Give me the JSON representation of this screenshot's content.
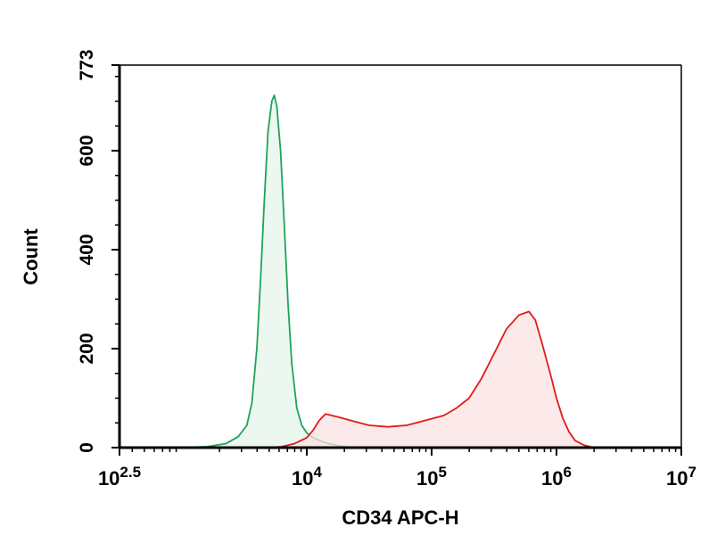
{
  "chart_data": {
    "type": "area",
    "title": "",
    "xlabel": "CD34 APC-H",
    "ylabel": "Count",
    "x_scale": "log10",
    "xlim_log10": [
      2.5,
      7
    ],
    "ylim": [
      0,
      773
    ],
    "x_ticks": [
      {
        "base": "10",
        "exp": "2.5",
        "value_log10": 2.5
      },
      {
        "base": "10",
        "exp": "4",
        "value_log10": 4
      },
      {
        "base": "10",
        "exp": "5",
        "value_log10": 5
      },
      {
        "base": "10",
        "exp": "6",
        "value_log10": 6
      },
      {
        "base": "10",
        "exp": "7",
        "value_log10": 7
      }
    ],
    "y_ticks": [
      {
        "label": "0",
        "value": 0
      },
      {
        "label": "200",
        "value": 200
      },
      {
        "label": "400",
        "value": 400
      },
      {
        "label": "600",
        "value": 600
      },
      {
        "label": "773",
        "value": 773
      }
    ],
    "grid": false,
    "legend": "none",
    "series": [
      {
        "color": "#1fa35a",
        "fill": "#e6f4ea",
        "points_log10_count": [
          [
            3.0,
            0
          ],
          [
            3.2,
            2
          ],
          [
            3.35,
            8
          ],
          [
            3.45,
            22
          ],
          [
            3.52,
            45
          ],
          [
            3.56,
            90
          ],
          [
            3.6,
            200
          ],
          [
            3.63,
            340
          ],
          [
            3.66,
            500
          ],
          [
            3.69,
            640
          ],
          [
            3.72,
            700
          ],
          [
            3.74,
            712
          ],
          [
            3.76,
            690
          ],
          [
            3.79,
            600
          ],
          [
            3.82,
            450
          ],
          [
            3.85,
            290
          ],
          [
            3.88,
            170
          ],
          [
            3.92,
            80
          ],
          [
            3.96,
            45
          ],
          [
            4.0,
            30
          ],
          [
            4.05,
            20
          ],
          [
            4.15,
            10
          ],
          [
            4.25,
            4
          ],
          [
            4.35,
            1
          ],
          [
            4.45,
            0
          ]
        ]
      },
      {
        "color": "#e01b1b",
        "fill": "#fbe2e2",
        "points_log10_count": [
          [
            3.7,
            0
          ],
          [
            3.8,
            2
          ],
          [
            3.9,
            8
          ],
          [
            4.0,
            20
          ],
          [
            4.05,
            35
          ],
          [
            4.1,
            55
          ],
          [
            4.15,
            68
          ],
          [
            4.25,
            62
          ],
          [
            4.35,
            55
          ],
          [
            4.5,
            45
          ],
          [
            4.65,
            42
          ],
          [
            4.8,
            45
          ],
          [
            4.95,
            55
          ],
          [
            5.1,
            65
          ],
          [
            5.2,
            80
          ],
          [
            5.3,
            100
          ],
          [
            5.4,
            140
          ],
          [
            5.5,
            190
          ],
          [
            5.6,
            240
          ],
          [
            5.7,
            268
          ],
          [
            5.78,
            275
          ],
          [
            5.83,
            258
          ],
          [
            5.88,
            215
          ],
          [
            5.95,
            150
          ],
          [
            6.0,
            100
          ],
          [
            6.05,
            60
          ],
          [
            6.1,
            32
          ],
          [
            6.15,
            14
          ],
          [
            6.22,
            5
          ],
          [
            6.3,
            0
          ]
        ]
      }
    ]
  }
}
